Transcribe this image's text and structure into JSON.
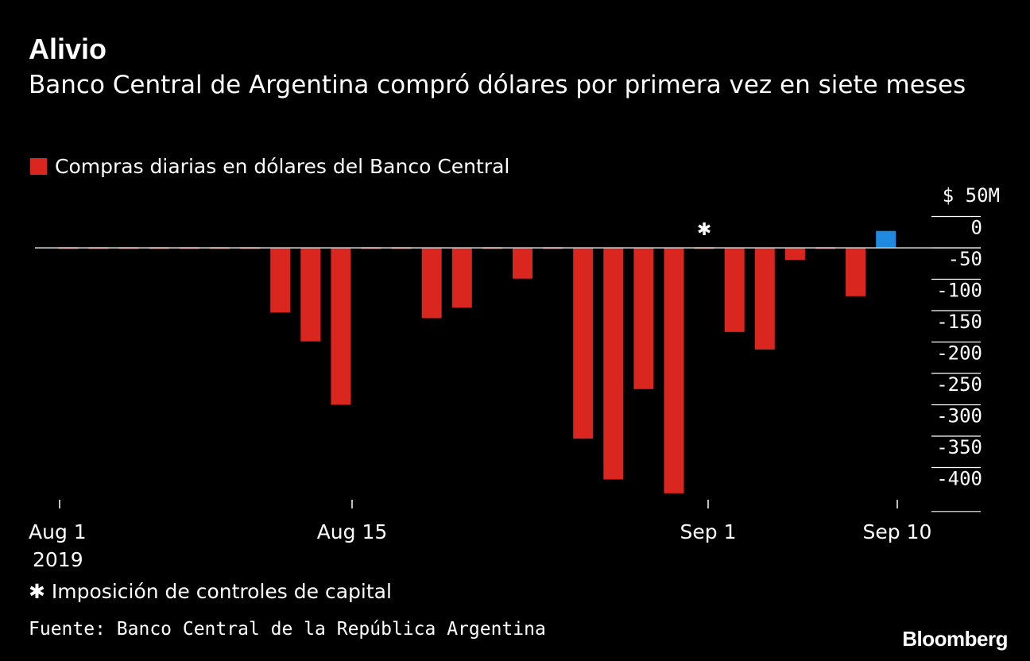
{
  "header": {
    "title": "Alivio",
    "subtitle": "Banco Central de Argentina compró dólares por primera vez en siete meses"
  },
  "legend": {
    "label": "Compras diarias en dólares del Banco Central"
  },
  "colors": {
    "negative": "#d9261e",
    "positive": "#1f8ae0",
    "background": "#000000",
    "text": "#ffffff"
  },
  "chart_data": {
    "type": "bar",
    "title": "Alivio",
    "subtitle": "Banco Central de Argentina compró dólares por primera vez en siete meses",
    "xlabel": "",
    "ylabel": "$ 50M",
    "ylim": [
      -400,
      50
    ],
    "yticks": [
      0,
      -50,
      -100,
      -150,
      -200,
      -250,
      -300,
      -350,
      -400
    ],
    "ytick_labels": [
      "0",
      "-50",
      "-100",
      "-150",
      "-200",
      "-250",
      "-300",
      "-350",
      "-400"
    ],
    "unit_label": "$ 50M",
    "x_tick_labels": [
      "Aug 1",
      "Aug 15",
      "Sep 1",
      "Sep 10"
    ],
    "x_year_label": "2019",
    "series": [
      {
        "name": "Compras diarias en dólares del Banco Central",
        "values": [
          0,
          0,
          0,
          0,
          0,
          0,
          0,
          -103,
          -149,
          -250,
          0,
          0,
          -112,
          -95,
          0,
          -49,
          0,
          -304,
          -369,
          -225,
          -391,
          0,
          -134,
          -162,
          -19,
          0,
          -77,
          27
        ]
      }
    ],
    "annotation": {
      "symbol": "✱",
      "bar_index": 21
    }
  },
  "footnote": {
    "symbol": "✱",
    "text": "Imposición de controles de capital"
  },
  "source": "Fuente: Banco Central de la República Argentina",
  "brand": "Bloomberg"
}
